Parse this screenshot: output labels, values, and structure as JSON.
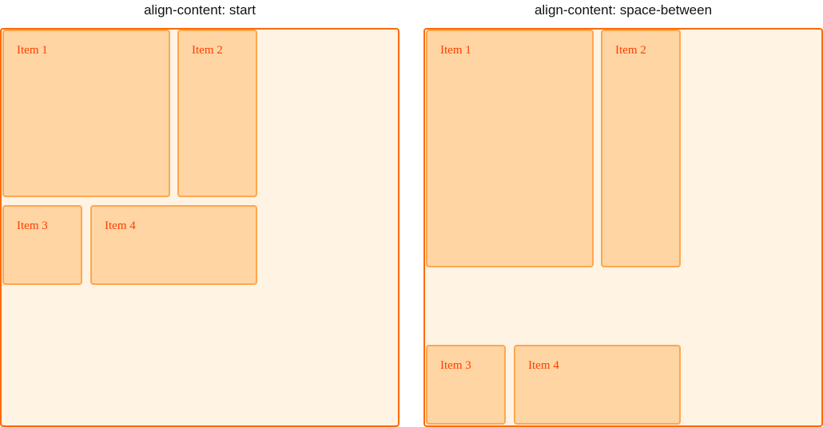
{
  "panels": [
    {
      "title": "align-content: start",
      "items": [
        "Item 1",
        "Item 2",
        "Item 3",
        "Item 4"
      ]
    },
    {
      "title": "align-content: space-between",
      "items": [
        "Item 1",
        "Item 2",
        "Item 3",
        "Item 4"
      ]
    }
  ],
  "colors": {
    "container_border": "#ff6a00",
    "container_bg": "#fff3e4",
    "item_bg": "#fed5a3",
    "item_border": "#ffa64d",
    "item_text": "#ff3d00"
  }
}
